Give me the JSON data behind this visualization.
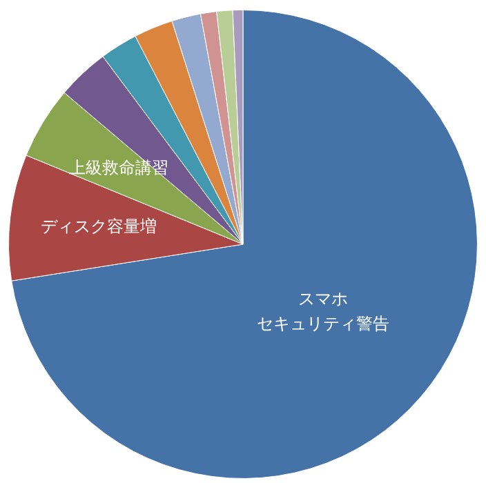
{
  "chart_data": {
    "type": "pie",
    "categories": [
      "スマホセキュリティ警告",
      "ディスク容量増",
      "上級救命講習",
      null,
      null,
      null,
      null,
      null,
      null,
      null
    ],
    "values": [
      72.5,
      8.7,
      5.0,
      3.6,
      2.6,
      2.7,
      2.0,
      1.1,
      1.1,
      0.7
    ],
    "colors": [
      "#4572a7",
      "#aa4643",
      "#89a54e",
      "#71588f",
      "#4198af",
      "#db843d",
      "#93a9cf",
      "#d19392",
      "#b9cd96",
      "#a99bbd"
    ],
    "legend": false
  }
}
